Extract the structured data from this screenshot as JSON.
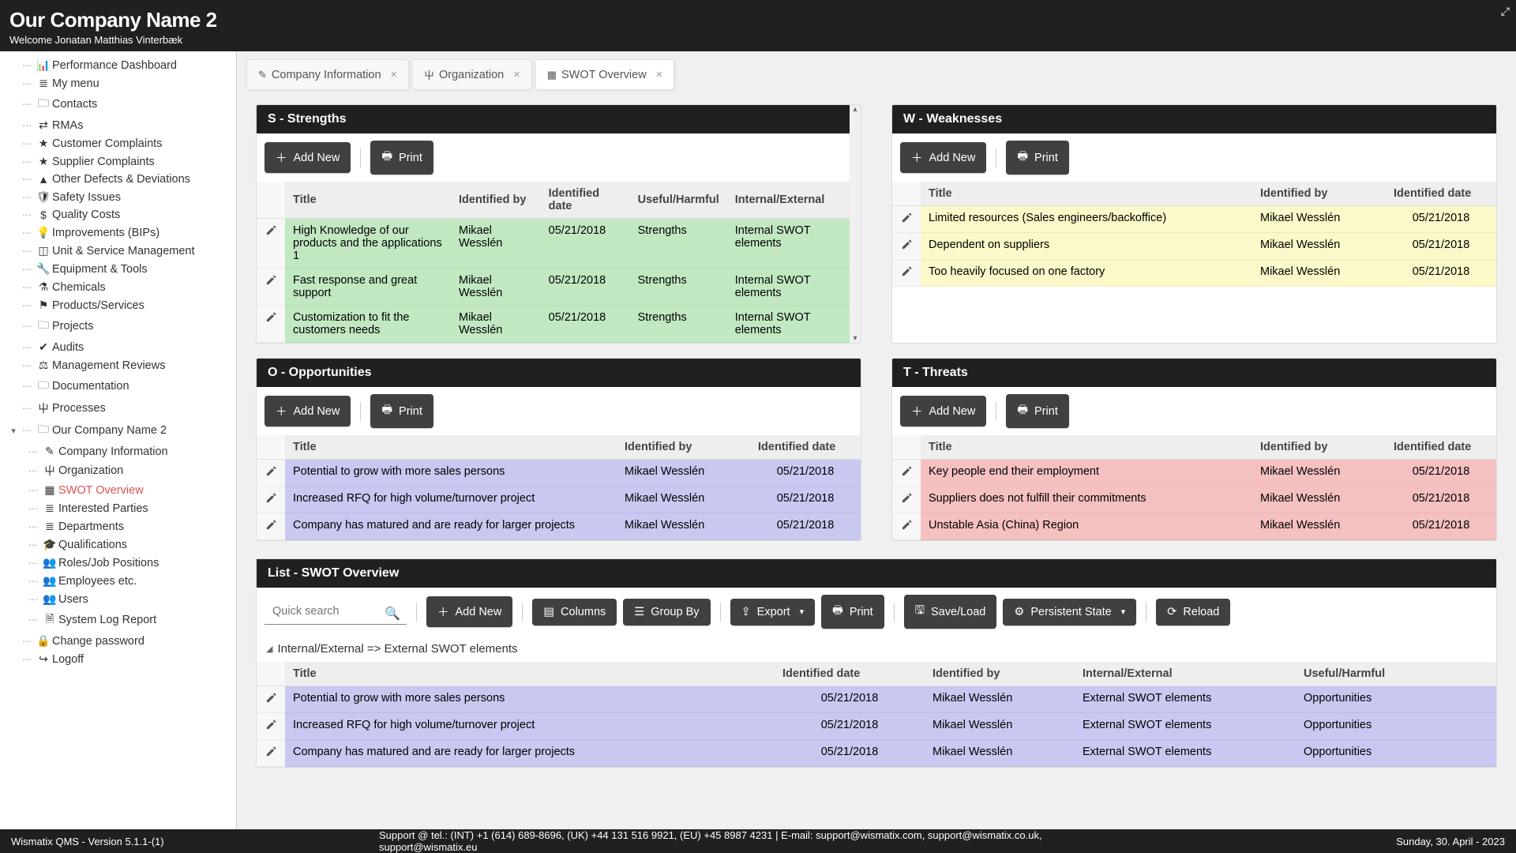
{
  "header": {
    "title": "Our Company Name 2",
    "welcome": "Welcome Jonatan Matthias Vinterbæk"
  },
  "sidebar": {
    "items": [
      {
        "icon": "dashboard",
        "label": "Performance Dashboard"
      },
      {
        "icon": "list",
        "label": "My menu"
      },
      {
        "icon": "folder",
        "label": "Contacts"
      },
      {
        "icon": "exchange",
        "label": "RMAs"
      },
      {
        "icon": "star",
        "label": "Customer Complaints"
      },
      {
        "icon": "star",
        "label": "Supplier Complaints"
      },
      {
        "icon": "warning",
        "label": "Other Defects & Deviations"
      },
      {
        "icon": "shield",
        "label": "Safety Issues"
      },
      {
        "icon": "money",
        "label": "Quality Costs"
      },
      {
        "icon": "bulb",
        "label": "Improvements (BIPs)"
      },
      {
        "icon": "cube",
        "label": "Unit & Service Management"
      },
      {
        "icon": "wrench",
        "label": "Equipment & Tools"
      },
      {
        "icon": "flask",
        "label": "Chemicals"
      },
      {
        "icon": "tag",
        "label": "Products/Services"
      },
      {
        "icon": "folder",
        "label": "Projects"
      },
      {
        "icon": "check",
        "label": "Audits"
      },
      {
        "icon": "gavel",
        "label": "Management Reviews"
      },
      {
        "icon": "folder",
        "label": "Documentation"
      },
      {
        "icon": "sitemap",
        "label": "Processes"
      },
      {
        "icon": "folder",
        "label": "Our Company Name 2",
        "expanded": true,
        "children": [
          {
            "icon": "edit",
            "label": "Company Information"
          },
          {
            "icon": "sitemap",
            "label": "Organization"
          },
          {
            "icon": "grid",
            "label": "SWOT Overview",
            "active": true
          },
          {
            "icon": "list",
            "label": "Interested Parties"
          },
          {
            "icon": "list",
            "label": "Departments"
          },
          {
            "icon": "grad",
            "label": "Qualifications"
          },
          {
            "icon": "users",
            "label": "Roles/Job Positions"
          },
          {
            "icon": "users",
            "label": "Employees etc."
          },
          {
            "icon": "users",
            "label": "Users"
          },
          {
            "icon": "file",
            "label": "System Log Report"
          }
        ]
      },
      {
        "icon": "lock",
        "label": "Change password"
      },
      {
        "icon": "signout",
        "label": "Logoff"
      }
    ]
  },
  "tabs": [
    {
      "icon": "edit",
      "label": "Company Information",
      "active": false
    },
    {
      "icon": "sitemap",
      "label": "Organization",
      "active": false
    },
    {
      "icon": "grid",
      "label": "SWOT Overview",
      "active": true
    }
  ],
  "buttons": {
    "add_new": "Add New",
    "print": "Print",
    "columns": "Columns",
    "group_by": "Group By",
    "export": "Export",
    "save_load": "Save/Load",
    "persistent_state": "Persistent State",
    "reload": "Reload"
  },
  "search_placeholder": "Quick search",
  "swot": {
    "strengths": {
      "title": "S - Strengths",
      "columns": [
        "Title",
        "Identified by",
        "Identified date",
        "Useful/Harmful",
        "Internal/External"
      ],
      "rows": [
        {
          "title": "High Knowledge of our products and the applications 1",
          "by": "Mikael Wesslén",
          "date": "05/21/2018",
          "uh": "Strengths",
          "ie": "Internal SWOT elements"
        },
        {
          "title": "Fast response and great support",
          "by": "Mikael Wesslén",
          "date": "05/21/2018",
          "uh": "Strengths",
          "ie": "Internal SWOT elements"
        },
        {
          "title": "Customization to fit the customers needs",
          "by": "Mikael Wesslén",
          "date": "05/21/2018",
          "uh": "Strengths",
          "ie": "Internal SWOT elements"
        }
      ],
      "row_color": "#c2e8c2"
    },
    "weaknesses": {
      "title": "W - Weaknesses",
      "columns": [
        "Title",
        "Identified by",
        "Identified date"
      ],
      "rows": [
        {
          "title": "Limited resources (Sales engineers/backoffice)",
          "by": "Mikael Wesslén",
          "date": "05/21/2018"
        },
        {
          "title": "Dependent on suppliers",
          "by": "Mikael Wesslén",
          "date": "05/21/2018"
        },
        {
          "title": "Too heavily focused on one factory",
          "by": "Mikael Wesslén",
          "date": "05/21/2018"
        }
      ],
      "row_color": "#fbf9c9"
    },
    "opportunities": {
      "title": "O - Opportunities",
      "columns": [
        "Title",
        "Identified by",
        "Identified date"
      ],
      "rows": [
        {
          "title": "Potential to grow with more sales persons",
          "by": "Mikael Wesslén",
          "date": "05/21/2018"
        },
        {
          "title": "Increased RFQ for high volume/turnover project",
          "by": "Mikael Wesslén",
          "date": "05/21/2018"
        },
        {
          "title": "Company has matured and are ready for larger projects",
          "by": "Mikael Wesslén",
          "date": "05/21/2018"
        }
      ],
      "row_color": "#c8c8f0"
    },
    "threats": {
      "title": "T - Threats",
      "columns": [
        "Title",
        "Identified by",
        "Identified date"
      ],
      "rows": [
        {
          "title": "Key people end their employment",
          "by": "Mikael Wesslén",
          "date": "05/21/2018"
        },
        {
          "title": "Suppliers does not fulfill their commitments",
          "by": "Mikael Wesslén",
          "date": "05/21/2018"
        },
        {
          "title": "Unstable Asia (China) Region",
          "by": "Mikael Wesslén",
          "date": "05/21/2018"
        }
      ],
      "row_color": "#f5c0c0"
    }
  },
  "list": {
    "title": "List - SWOT Overview",
    "group_label": "Internal/External => External SWOT elements",
    "columns": [
      "Title",
      "Identified date",
      "Identified by",
      "Internal/External",
      "Useful/Harmful"
    ],
    "rows": [
      {
        "title": "Potential to grow with more sales persons",
        "date": "05/21/2018",
        "by": "Mikael Wesslén",
        "ie": "External SWOT elements",
        "uh": "Opportunities"
      },
      {
        "title": "Increased RFQ for high volume/turnover project",
        "date": "05/21/2018",
        "by": "Mikael Wesslén",
        "ie": "External SWOT elements",
        "uh": "Opportunities"
      },
      {
        "title": "Company has matured and are ready for larger projects",
        "date": "05/21/2018",
        "by": "Mikael Wesslén",
        "ie": "External SWOT elements",
        "uh": "Opportunities"
      }
    ],
    "row_color": "#c8c8f0"
  },
  "footer": {
    "left": "Wismatix QMS - Version 5.1.1-(1)",
    "center": "Support @ tel.: (INT) +1 (614) 689-8696, (UK) +44 131 516 9921, (EU) +45 8987 4231 | E-mail: support@wismatix.com, support@wismatix.co.uk, support@wismatix.eu",
    "right": "Sunday, 30. April - 2023"
  },
  "icons_unicode": {
    "dashboard": "☷",
    "list": "≣",
    "folder": "🖿",
    "exchange": "⇄",
    "star": "★",
    "warning": "▲",
    "shield": "⛨",
    "money": "$",
    "bulb": "💡",
    "cube": "⬚",
    "wrench": "🔧",
    "flask": "⚗",
    "tag": "⚑",
    "check": "✔",
    "gavel": "⚖",
    "sitemap": "�⅄",
    "grid": "▦",
    "edit": "✎",
    "grad": "🎓",
    "users": "👥",
    "file": "🗎",
    "lock": "🔒",
    "signout": "↪",
    "plus": "＋",
    "print": "🖶",
    "columns": "☰",
    "layers": "≡",
    "upload": "⇪",
    "save": "💾",
    "gear": "⚙",
    "reload": "⟳",
    "search": "🔍"
  }
}
